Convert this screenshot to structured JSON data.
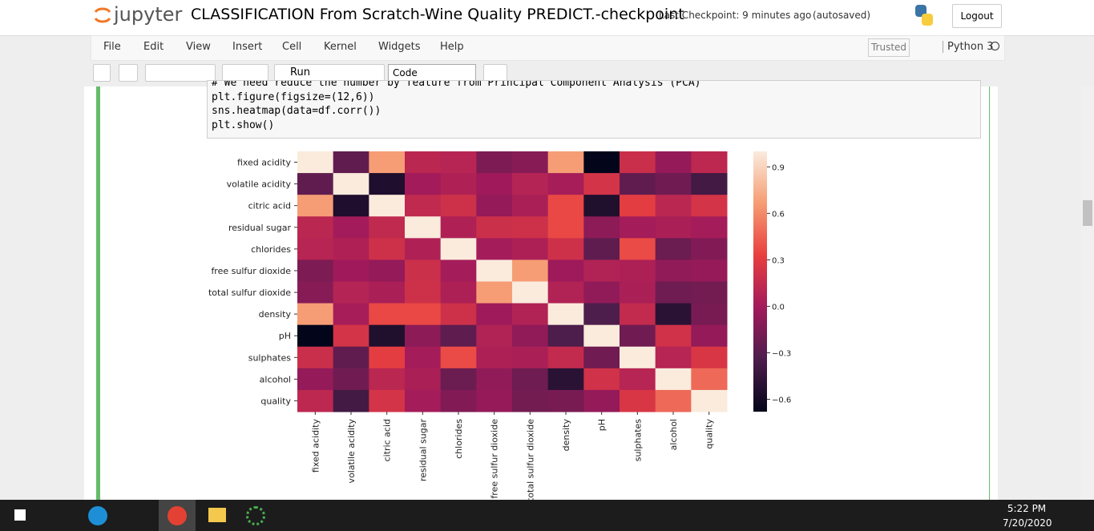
{
  "header": {
    "logo": "jupyter",
    "title": "CLASSIFICATION From Scratch-Wine Quality PREDICT.-checkpoint",
    "checkpoint": "Last Checkpoint: 9 minutes ago",
    "autosave": "(autosaved)",
    "logout": "Logout"
  },
  "menu": [
    "File",
    "Edit",
    "View",
    "Insert",
    "Cell",
    "Kernel",
    "Widgets",
    "Help"
  ],
  "status": {
    "trusted": "Trusted",
    "kernel": "Python 3"
  },
  "toolbar": {
    "run": "Run",
    "cell_type": "Code"
  },
  "code": [
    "# We need reduce the number by feature from Principal Component Analysis (PCA)",
    "plt.figure(figsize=(12,6))",
    "sns.heatmap(data=df.corr())",
    "plt.show()"
  ],
  "chart_data": {
    "type": "heatmap",
    "categories": [
      "fixed acidity",
      "volatile acidity",
      "citric acid",
      "residual sugar",
      "chlorides",
      "free sulfur dioxide",
      "total sulfur dioxide",
      "density",
      "pH",
      "sulphates",
      "alcohol",
      "quality"
    ],
    "values": [
      [
        1,
        -0.26,
        0.67,
        0.11,
        0.09,
        -0.15,
        -0.11,
        0.67,
        -0.68,
        0.18,
        -0.06,
        0.12
      ],
      [
        -0.26,
        1,
        -0.55,
        0,
        0.06,
        -0.01,
        0.08,
        0.02,
        0.23,
        -0.26,
        -0.2,
        -0.39
      ],
      [
        0.67,
        -0.55,
        1,
        0.14,
        0.2,
        -0.06,
        0.04,
        0.36,
        -0.54,
        0.31,
        0.11,
        0.23
      ],
      [
        0.11,
        0,
        0.14,
        1,
        0.06,
        0.19,
        0.2,
        0.36,
        -0.09,
        0.01,
        0.04,
        0.01
      ],
      [
        0.09,
        0.06,
        0.2,
        0.06,
        1,
        0.01,
        0.05,
        0.2,
        -0.27,
        0.37,
        -0.22,
        -0.13
      ],
      [
        -0.15,
        -0.01,
        -0.06,
        0.19,
        0.01,
        1,
        0.67,
        -0.02,
        0.07,
        0.05,
        -0.07,
        -0.05
      ],
      [
        -0.11,
        0.08,
        0.04,
        0.2,
        0.05,
        0.67,
        1,
        0.07,
        -0.07,
        0.04,
        -0.21,
        -0.19
      ],
      [
        0.67,
        0.02,
        0.36,
        0.36,
        0.2,
        -0.02,
        0.07,
        1,
        -0.34,
        0.15,
        -0.5,
        -0.17
      ],
      [
        -0.68,
        0.23,
        -0.54,
        -0.09,
        -0.27,
        0.07,
        -0.07,
        -0.34,
        1,
        -0.2,
        0.21,
        -0.06
      ],
      [
        0.18,
        -0.26,
        0.31,
        0.01,
        0.37,
        0.05,
        0.04,
        0.15,
        -0.2,
        1,
        0.09,
        0.25
      ],
      [
        -0.06,
        -0.2,
        0.11,
        0.04,
        -0.22,
        -0.07,
        -0.21,
        -0.5,
        0.21,
        0.09,
        1,
        0.48
      ],
      [
        0.12,
        -0.39,
        0.23,
        0.01,
        -0.13,
        -0.05,
        -0.19,
        -0.17,
        -0.06,
        0.25,
        0.48,
        1
      ]
    ],
    "zlim": [
      -0.68,
      1
    ],
    "zticks": [
      {
        "value": -0.6,
        "label": "−0.6"
      },
      {
        "value": -0.3,
        "label": "−0.3"
      },
      {
        "value": 0,
        "label": "0.0"
      },
      0.3,
      0.6,
      0.9
    ],
    "colors": [
      "#03051a",
      "#4c1d4b",
      "#a11a5b",
      "#e83f3f",
      "#f69c73",
      "#faebdd"
    ]
  },
  "taskbar": {
    "time": "5:22 PM",
    "date": "7/20/2020"
  }
}
